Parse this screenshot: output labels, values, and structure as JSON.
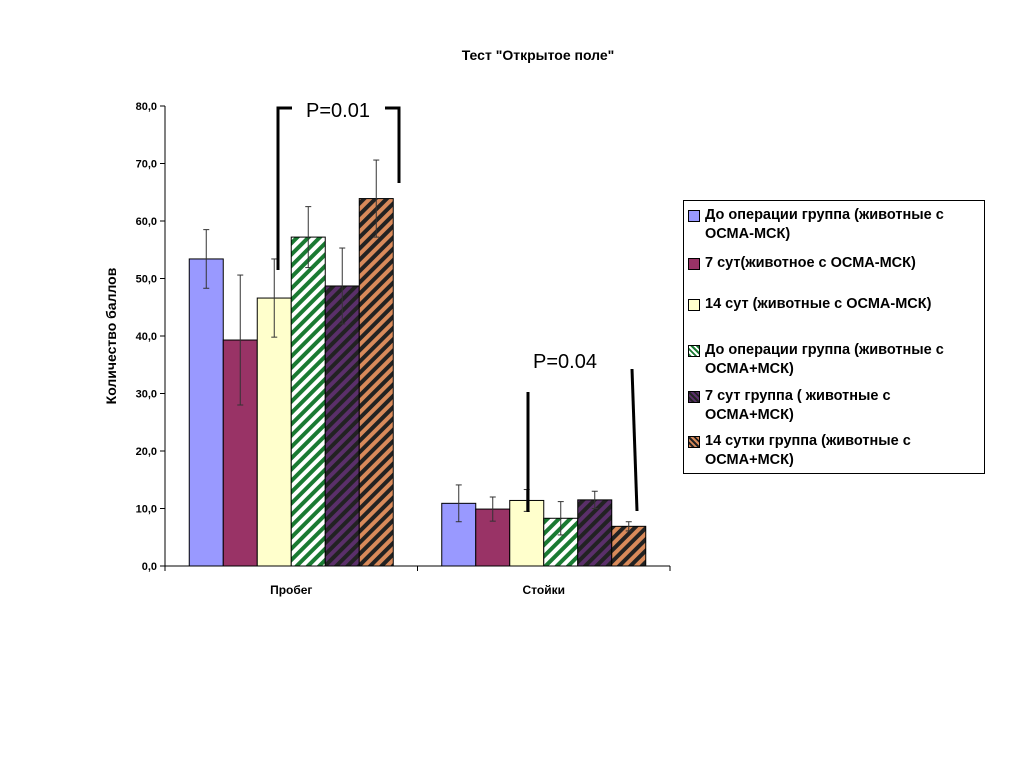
{
  "chart_data": {
    "type": "bar",
    "title": "Тест \"Открытое поле\"",
    "xlabel": "",
    "ylabel": "Количество баллов",
    "ylim": [
      0,
      80
    ],
    "yticks": [
      "0,0",
      "10,0",
      "20,0",
      "30,0",
      "40,0",
      "50,0",
      "60,0",
      "70,0",
      "80,0"
    ],
    "categories": [
      "Пробег",
      "Стойки"
    ],
    "grid": false,
    "legend_position": "right",
    "series": [
      {
        "name": "До операции группа  (животные с ОСМА-МСК)",
        "values": [
          53.4,
          10.9
        ],
        "errors": [
          5.1,
          3.2
        ],
        "color": "#9999ff",
        "pattern": "solid"
      },
      {
        "name": "7 сут(животное с ОСМА-МСК)",
        "values": [
          39.3,
          9.9
        ],
        "errors": [
          11.3,
          2.1
        ],
        "color": "#993366",
        "pattern": "solid"
      },
      {
        "name": "14 сут (животные с ОСМА-МСК)",
        "values": [
          46.6,
          11.4
        ],
        "errors": [
          6.8,
          1.9
        ],
        "color": "#ffffcc",
        "pattern": "solid"
      },
      {
        "name": "До операции группа  (животные с ОСМА+МСК)",
        "values": [
          57.2,
          8.3
        ],
        "errors": [
          5.3,
          2.9
        ],
        "color": "#1a7a32",
        "pattern": "stripes"
      },
      {
        "name": "7 сут группа ( животные с ОСМА+МСК)",
        "values": [
          48.7,
          11.5
        ],
        "errors": [
          6.6,
          1.5
        ],
        "color": "#5a2f6a",
        "pattern": "stripes"
      },
      {
        "name": "14 сутки группа (животные  с ОСМА+МСК)",
        "values": [
          63.9,
          6.9
        ],
        "errors": [
          6.7,
          0.8
        ],
        "color": "#d98a5a",
        "pattern": "stripes"
      }
    ],
    "annotations": [
      "P=0.01",
      "P=0.04"
    ]
  }
}
